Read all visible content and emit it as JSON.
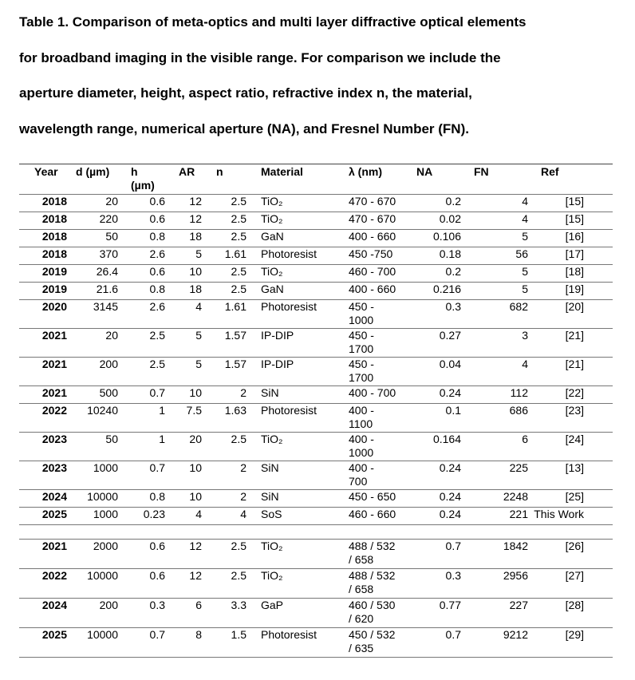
{
  "caption": {
    "line1": "Table 1. Comparison of meta-optics and multi layer diffractive optical elements",
    "line2": "for broadband imaging in the visible range. For comparison we include the",
    "line3": "aperture diameter, height, aspect ratio, refractive index n, the material,",
    "line4": "wavelength range, numerical aperture (NA), and Fresnel Number (FN)."
  },
  "header": {
    "year": "Year",
    "d": "d (µm)",
    "h1": "h",
    "h2": "(µm)",
    "ar": "AR",
    "n": "n",
    "material": "Material",
    "lambda": "λ (nm)",
    "na": "NA",
    "fn": "FN",
    "ref": "Ref"
  },
  "rows_group1": [
    {
      "year": "2018",
      "d": "20",
      "h": "0.6",
      "ar": "12",
      "n": "2.5",
      "material": "TiO₂",
      "lambda1": "470 - 670",
      "lambda2": "",
      "na": "0.2",
      "fn": "4",
      "ref": "[15]"
    },
    {
      "year": "2018",
      "d": "220",
      "h": "0.6",
      "ar": "12",
      "n": "2.5",
      "material": "TiO₂",
      "lambda1": "470 - 670",
      "lambda2": "",
      "na": "0.02",
      "fn": "4",
      "ref": "[15]"
    },
    {
      "year": "2018",
      "d": "50",
      "h": "0.8",
      "ar": "18",
      "n": "2.5",
      "material": "GaN",
      "lambda1": "400 - 660",
      "lambda2": "",
      "na": "0.106",
      "fn": "5",
      "ref": "[16]"
    },
    {
      "year": "2018",
      "d": "370",
      "h": "2.6",
      "ar": "5",
      "n": "1.61",
      "material": "Photoresist",
      "lambda1": "450 -750",
      "lambda2": "",
      "na": "0.18",
      "fn": "56",
      "ref": "[17]"
    },
    {
      "year": "2019",
      "d": "26.4",
      "h": "0.6",
      "ar": "10",
      "n": "2.5",
      "material": "TiO₂",
      "lambda1": "460 - 700",
      "lambda2": "",
      "na": "0.2",
      "fn": "5",
      "ref": "[18]"
    },
    {
      "year": "2019",
      "d": "21.6",
      "h": "0.8",
      "ar": "18",
      "n": "2.5",
      "material": "GaN",
      "lambda1": "400 - 660",
      "lambda2": "",
      "na": "0.216",
      "fn": "5",
      "ref": "[19]"
    },
    {
      "year": "2020",
      "d": "3145",
      "h": "2.6",
      "ar": "4",
      "n": "1.61",
      "material": "Photoresist",
      "lambda1": "450 -",
      "lambda2": "1000",
      "na": "0.3",
      "fn": "682",
      "ref": "[20]"
    },
    {
      "year": "2021",
      "d": "20",
      "h": "2.5",
      "ar": "5",
      "n": "1.57",
      "material": "IP-DIP",
      "lambda1": "450 -",
      "lambda2": "1700",
      "na": "0.27",
      "fn": "3",
      "ref": "[21]"
    },
    {
      "year": "2021",
      "d": "200",
      "h": "2.5",
      "ar": "5",
      "n": "1.57",
      "material": "IP-DIP",
      "lambda1": "450 -",
      "lambda2": "1700",
      "na": "0.04",
      "fn": "4",
      "ref": "[21]"
    },
    {
      "year": "2021",
      "d": "500",
      "h": "0.7",
      "ar": "10",
      "n": "2",
      "material": "SiN",
      "lambda1": "400 - 700",
      "lambda2": "",
      "na": "0.24",
      "fn": "112",
      "ref": "[22]"
    },
    {
      "year": "2022",
      "d": "10240",
      "h": "1",
      "ar": "7.5",
      "n": "1.63",
      "material": "Photoresist",
      "lambda1": "400 -",
      "lambda2": "1100",
      "na": "0.1",
      "fn": "686",
      "ref": "[23]"
    },
    {
      "year": "2023",
      "d": "50",
      "h": "1",
      "ar": "20",
      "n": "2.5",
      "material": "TiO₂",
      "lambda1": "400 -",
      "lambda2": "1000",
      "na": "0.164",
      "fn": "6",
      "ref": "[24]"
    },
    {
      "year": "2023",
      "d": "1000",
      "h": "0.7",
      "ar": "10",
      "n": "2",
      "material": "SiN",
      "lambda1": " 400 -",
      "lambda2": " 700",
      "na": "0.24",
      "fn": "225",
      "ref": "[13]"
    },
    {
      "year": "2024",
      "d": "10000",
      "h": "0.8",
      "ar": "10",
      "n": "2",
      "material": "SiN",
      "lambda1": "450 - 650",
      "lambda2": "",
      "na": "0.24",
      "fn": "2248",
      "ref": "[25]"
    },
    {
      "year": "2025",
      "d": "1000",
      "h": "0.23",
      "ar": "4",
      "n": "4",
      "material": "SoS",
      "lambda1": "460 - 660",
      "lambda2": "",
      "na": "0.24",
      "fn": "221",
      "ref": "This Work"
    }
  ],
  "rows_group2": [
    {
      "year": "2021",
      "d": "2000",
      "h": "0.6",
      "ar": "12",
      "n": "2.5",
      "material": "TiO₂",
      "lambda1": "488 / 532",
      "lambda2": "/ 658",
      "na": "0.7",
      "fn": "1842",
      "ref": "[26]"
    },
    {
      "year": "2022",
      "d": "10000",
      "h": "0.6",
      "ar": "12",
      "n": "2.5",
      "material": "TiO₂",
      "lambda1": "488 / 532",
      "lambda2": "/ 658",
      "na": "0.3",
      "fn": "2956",
      "ref": "[27]"
    },
    {
      "year": "2024",
      "d": "200",
      "h": "0.3",
      "ar": "6",
      "n": "3.3",
      "material": "GaP",
      "lambda1": "460 / 530",
      "lambda2": "/ 620",
      "na": "0.77",
      "fn": "227",
      "ref": "[28]"
    },
    {
      "year": "2025",
      "d": "10000",
      "h": "0.7",
      "ar": "8",
      "n": "1.5",
      "material": "Photoresist",
      "lambda1": "450 / 532",
      "lambda2": "/ 635",
      "na": "0.7",
      "fn": "9212",
      "ref": "[29]"
    }
  ]
}
